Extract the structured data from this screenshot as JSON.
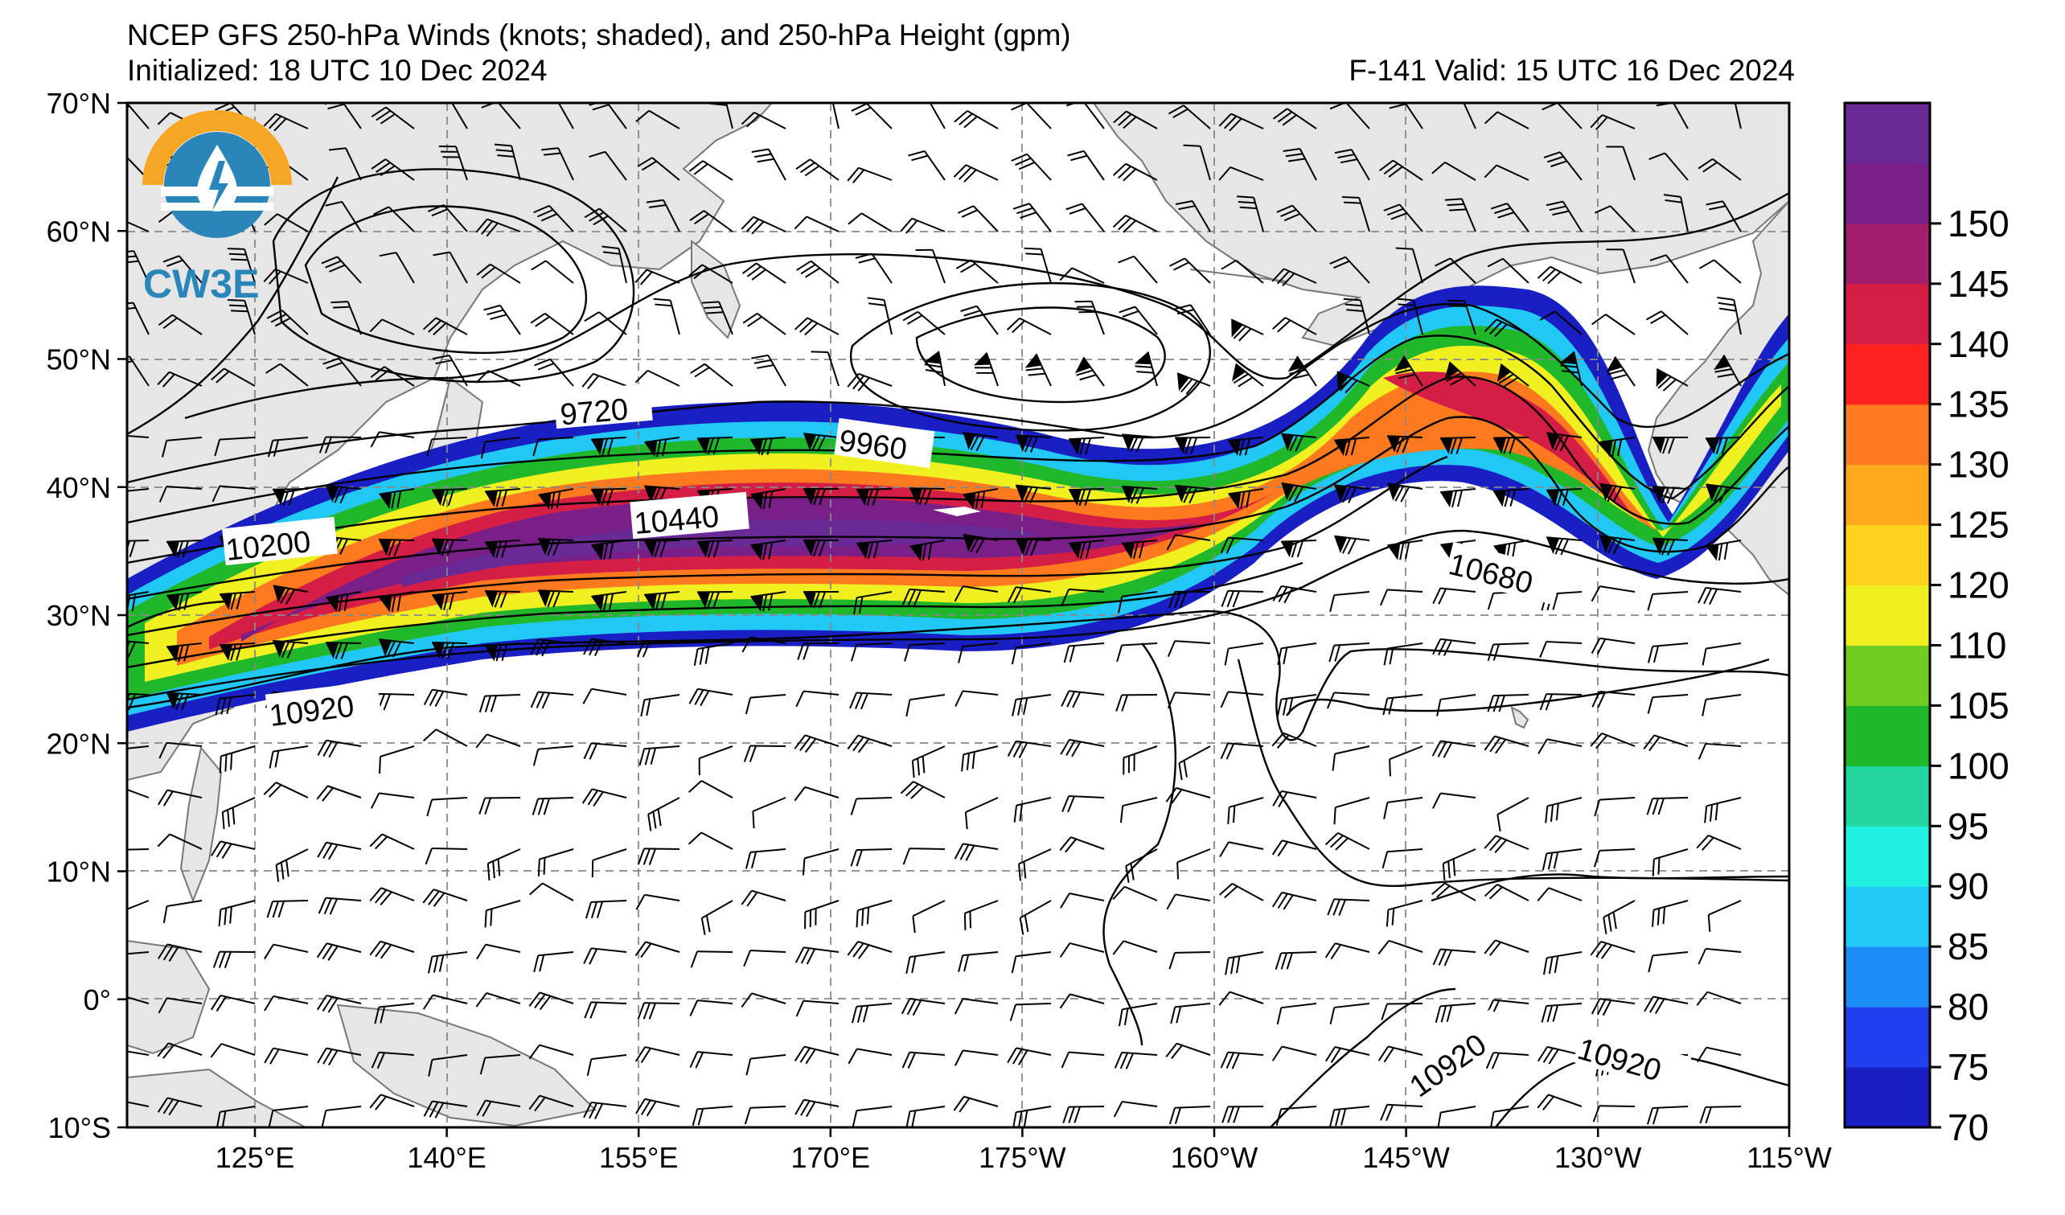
{
  "header": {
    "title": "NCEP GFS 250-hPa Winds (knots; shaded), and 250-hPa Height (gpm)",
    "initialized": "Initialized: 18 UTC 10 Dec 2024",
    "valid": "F-141  Valid: 15 UTC 16 Dec 2024"
  },
  "logo": {
    "text": "CW3E"
  },
  "map": {
    "lat_labels": [
      "70°N",
      "60°N",
      "50°N",
      "40°N",
      "30°N",
      "20°N",
      "10°N",
      "0°",
      "10°S"
    ],
    "lon_labels": [
      "125°E",
      "140°E",
      "155°E",
      "170°E",
      "175°W",
      "160°W",
      "145°W",
      "130°W",
      "115°W"
    ],
    "lat_range": [
      -10,
      70
    ],
    "lon_range_deg_east": [
      115,
      245
    ],
    "grid": true,
    "contour_labels": [
      "9720",
      "9960",
      "10200",
      "10440",
      "10680",
      "10920",
      "10920",
      "10920"
    ]
  },
  "colorbar": {
    "labels": [
      "70",
      "75",
      "80",
      "85",
      "90",
      "95",
      "100",
      "105",
      "110",
      "120",
      "125",
      "130",
      "135",
      "140",
      "145",
      "150"
    ],
    "colors": [
      "#1a1fc4",
      "#2040f0",
      "#1e8cf5",
      "#22c8f5",
      "#1ff0e0",
      "#22d6a0",
      "#20b82a",
      "#70cc20",
      "#f0f020",
      "#ffd21e",
      "#ffaa1e",
      "#ff7a1e",
      "#ff2020",
      "#d41e46",
      "#a41e6e",
      "#7a1e88",
      "#6a2a96"
    ],
    "colors_note": "colors"
  },
  "styles": {
    "land": "#e6e6e6",
    "ocean": "#ffffff",
    "coast": "#777777",
    "grid": "#888888"
  }
}
